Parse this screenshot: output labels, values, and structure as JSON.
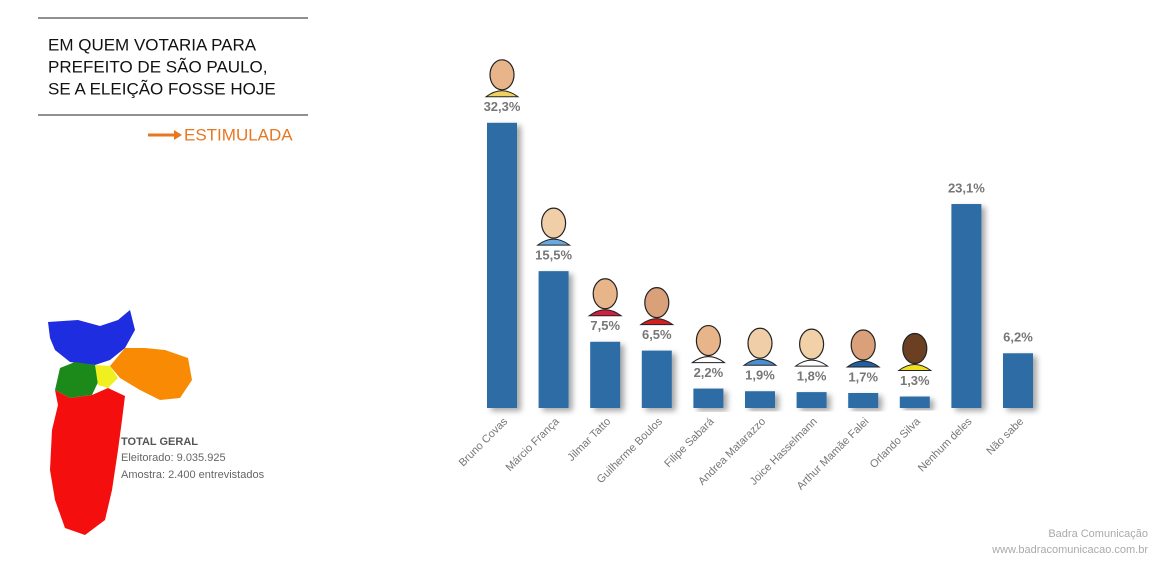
{
  "chart_data": {
    "type": "bar",
    "title": [
      "EM QUEM VOTARIA PARA",
      "PREFEITO DE SÃO PAULO,",
      "SE A ELEIÇÃO FOSSE HOJE"
    ],
    "subtitle": "ESTIMULADA",
    "categories": [
      "Bruno Covas",
      "Márcio França",
      "Jilmar Tatto",
      "Guilherme Boulos",
      "Filipe Sabará",
      "Andrea Matarazzo",
      "Joice Hasselmann",
      "Arthur Mamãe Falei",
      "Orlando Silva",
      "Nenhum deles",
      "Não sabe"
    ],
    "values": [
      32.3,
      15.5,
      7.5,
      6.5,
      2.2,
      1.9,
      1.8,
      1.7,
      1.3,
      23.1,
      6.2
    ],
    "value_labels": [
      "32,3%",
      "15,5%",
      "7,5%",
      "6,5%",
      "2,2%",
      "1,9%",
      "1,8%",
      "1,7%",
      "1,3%",
      "23,1%",
      "6,2%"
    ],
    "color": "#2e6ca6",
    "notes": {
      "heading": "TOTAL GERAL",
      "lines": [
        "Eleitorado: 9.035.925",
        "Amostra: 2.400 entrevistados"
      ]
    },
    "footer": [
      "Badra Comunicação",
      "www.badracomunicacao.com.br"
    ]
  }
}
